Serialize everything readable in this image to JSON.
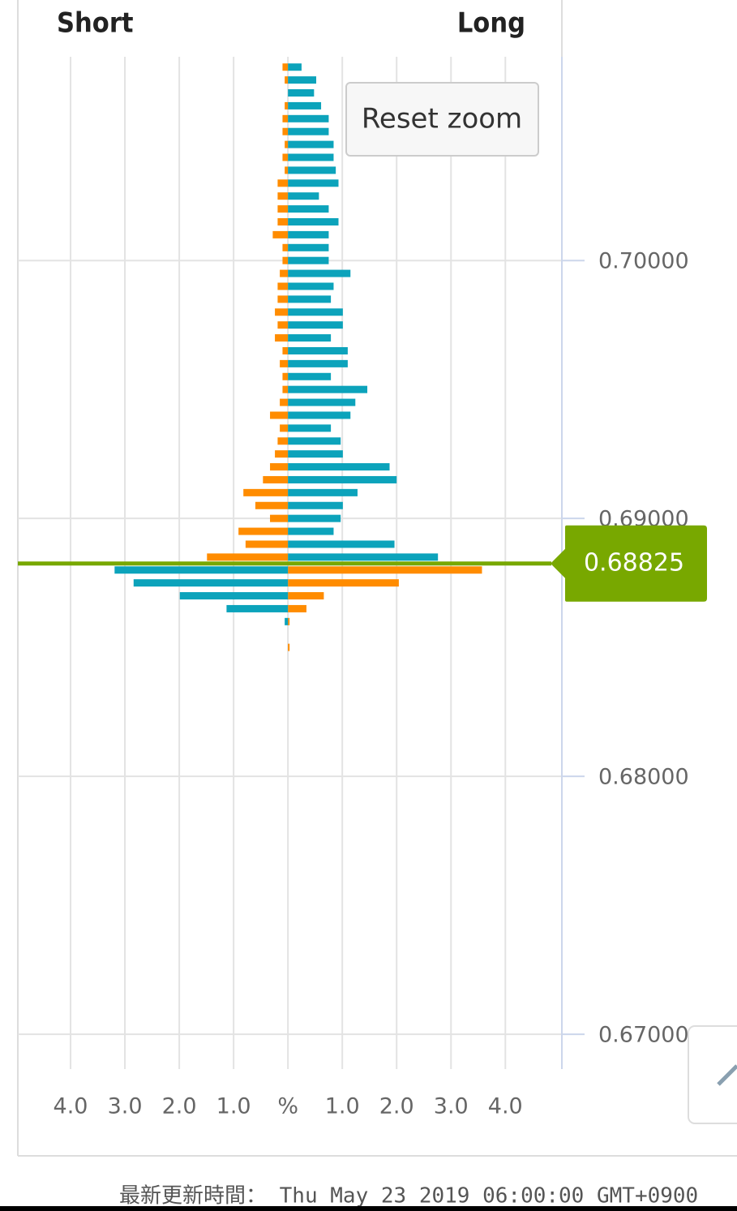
{
  "chart_data": {
    "type": "butterfly-bar",
    "left_label": "Short",
    "right_label": "Long",
    "button": "Reset zoom",
    "footnote": "最新更新時間： Thu May 23 2019 06:00:00 GMT+0900",
    "y": [
      0.7075,
      0.707,
      0.7065,
      0.706,
      0.7055,
      0.705,
      0.7045,
      0.704,
      0.7035,
      0.703,
      0.7025,
      0.702,
      0.7015,
      0.701,
      0.7005,
      0.7,
      0.6995,
      0.699,
      0.6985,
      0.698,
      0.6975,
      0.697,
      0.6965,
      0.696,
      0.6955,
      0.695,
      0.6945,
      0.694,
      0.6935,
      0.693,
      0.6925,
      0.692,
      0.6915,
      0.691,
      0.6905,
      0.69,
      0.6895,
      0.689,
      0.6885,
      0.688,
      0.6875,
      0.687,
      0.6865,
      0.686,
      0.6855,
      0.685
    ],
    "series": [
      {
        "color": "#ff8c00",
        "values": [
          -0.1,
          -0.06,
          0,
          -0.06,
          -0.1,
          -0.1,
          -0.06,
          -0.1,
          -0.06,
          -0.19,
          -0.19,
          -0.19,
          -0.19,
          -0.28,
          -0.1,
          -0.1,
          -0.15,
          -0.19,
          -0.19,
          -0.24,
          -0.19,
          -0.24,
          -0.1,
          -0.15,
          -0.1,
          -0.1,
          -0.15,
          -0.33,
          -0.15,
          -0.19,
          -0.24,
          -0.33,
          -0.46,
          -0.82,
          -0.6,
          -0.33,
          -0.91,
          -0.78,
          -1.49,
          3.57,
          2.04,
          0.66,
          0.34,
          0.03,
          0,
          0.03
        ]
      },
      {
        "color": "#0ca3bb",
        "values": [
          0.25,
          0.52,
          0.48,
          0.61,
          0.75,
          0.75,
          0.84,
          0.84,
          0.88,
          0.93,
          0.57,
          0.75,
          0.93,
          0.75,
          0.75,
          0.75,
          1.15,
          0.84,
          0.79,
          1.01,
          1.01,
          0.79,
          1.1,
          1.1,
          0.79,
          1.46,
          1.24,
          1.15,
          0.79,
          0.97,
          1.01,
          1.87,
          2,
          1.28,
          1.01,
          0.97,
          0.84,
          1.96,
          2.76,
          -3.19,
          -2.84,
          -1.99,
          -1.13,
          -0.06,
          0,
          0
        ]
      }
    ],
    "current_price": 0.68825,
    "current_color": "#78a800",
    "xlim": [
      -4.97,
      5.04
    ],
    "xticks": [
      {
        "value": -4,
        "label": "4.0"
      },
      {
        "value": -3,
        "label": "3.0"
      },
      {
        "value": -2,
        "label": "2.0"
      },
      {
        "value": -1,
        "label": "1.0"
      },
      {
        "value": 0,
        "label": "%"
      },
      {
        "value": 1,
        "label": "1.0"
      },
      {
        "value": 2,
        "label": "2.0"
      },
      {
        "value": 3,
        "label": "3.0"
      },
      {
        "value": 4,
        "label": "4.0"
      }
    ],
    "ylim": [
      0.66865,
      0.7079
    ],
    "yticks": [
      {
        "value": 0.7,
        "label": "0.70000"
      },
      {
        "value": 0.69,
        "label": "0.69000"
      },
      {
        "value": 0.68,
        "label": "0.68000"
      },
      {
        "value": 0.67,
        "label": "0.67000"
      }
    ],
    "grid": true
  }
}
